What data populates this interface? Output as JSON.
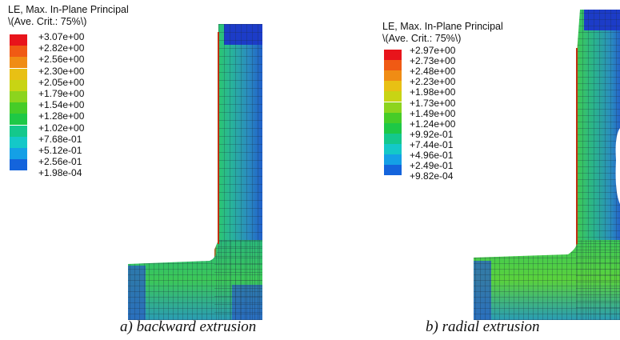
{
  "figure_a": {
    "legend_title_line1": "LE, Max. In-Plane Principal",
    "legend_title_line2": "\\(Ave. Crit.: 75%\\)",
    "legend_values": [
      "+3.07e+00",
      "+2.82e+00",
      "+2.56e+00",
      "+2.30e+00",
      "+2.05e+00",
      "+1.79e+00",
      "+1.54e+00",
      "+1.28e+00",
      "+1.02e+00",
      "+7.68e-01",
      "+5.12e-01",
      "+2.56e-01",
      "+1.98e-04"
    ],
    "caption": "a) backward extrusion"
  },
  "figure_b": {
    "legend_title_line1": "LE, Max. In-Plane Principal",
    "legend_title_line2": "\\(Ave. Crit.: 75%\\)",
    "legend_values": [
      "+2.97e+00",
      "+2.73e+00",
      "+2.48e+00",
      "+2.23e+00",
      "+1.98e+00",
      "+1.73e+00",
      "+1.49e+00",
      "+1.24e+00",
      "+9.92e-01",
      "+7.44e-01",
      "+4.96e-01",
      "+2.49e-01",
      "+9.82e-04"
    ],
    "caption": "b) radial extrusion"
  },
  "legend_colors": [
    "#e8141b",
    "#f05a14",
    "#f08c14",
    "#e8c014",
    "#c8d414",
    "#8cd41e",
    "#46cc28",
    "#1ec846",
    "#14c88c",
    "#14c8c8",
    "#14a0e6",
    "#1464dc",
    "#1414e6"
  ]
}
